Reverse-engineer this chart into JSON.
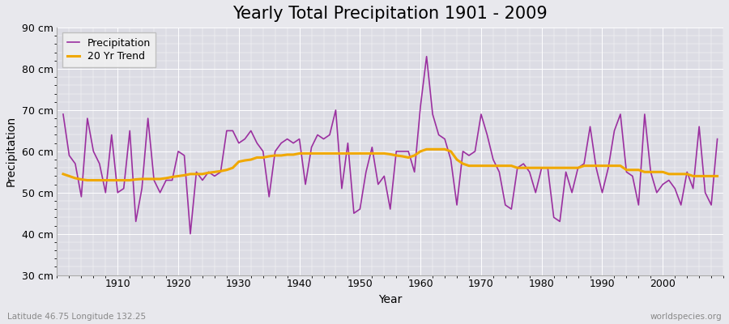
{
  "title": "Yearly Total Precipitation 1901 - 2009",
  "xlabel": "Year",
  "ylabel": "Precipitation",
  "subtitle_left": "Latitude 46.75 Longitude 132.25",
  "subtitle_right": "worldspecies.org",
  "years": [
    1901,
    1902,
    1903,
    1904,
    1905,
    1906,
    1907,
    1908,
    1909,
    1910,
    1911,
    1912,
    1913,
    1914,
    1915,
    1916,
    1917,
    1918,
    1919,
    1920,
    1921,
    1922,
    1923,
    1924,
    1925,
    1926,
    1927,
    1928,
    1929,
    1930,
    1931,
    1932,
    1933,
    1934,
    1935,
    1936,
    1937,
    1938,
    1939,
    1940,
    1941,
    1942,
    1943,
    1944,
    1945,
    1946,
    1947,
    1948,
    1949,
    1950,
    1951,
    1952,
    1953,
    1954,
    1955,
    1956,
    1957,
    1958,
    1959,
    1960,
    1961,
    1962,
    1963,
    1964,
    1965,
    1966,
    1967,
    1968,
    1969,
    1970,
    1971,
    1972,
    1973,
    1974,
    1975,
    1976,
    1977,
    1978,
    1979,
    1980,
    1981,
    1982,
    1983,
    1984,
    1985,
    1986,
    1987,
    1988,
    1989,
    1990,
    1991,
    1992,
    1993,
    1994,
    1995,
    1996,
    1997,
    1998,
    1999,
    2000,
    2001,
    2002,
    2003,
    2004,
    2005,
    2006,
    2007,
    2008,
    2009
  ],
  "precip": [
    69,
    59,
    57,
    49,
    68,
    60,
    57,
    50,
    64,
    50,
    51,
    65,
    43,
    51,
    68,
    53,
    50,
    53,
    53,
    60,
    59,
    40,
    55,
    53,
    55,
    54,
    55,
    65,
    65,
    62,
    63,
    65,
    62,
    60,
    49,
    60,
    62,
    63,
    62,
    63,
    52,
    61,
    64,
    63,
    64,
    70,
    51,
    62,
    45,
    46,
    55,
    61,
    52,
    54,
    46,
    60,
    60,
    60,
    55,
    71,
    83,
    69,
    64,
    63,
    58,
    47,
    60,
    59,
    60,
    69,
    64,
    58,
    55,
    47,
    46,
    56,
    57,
    55,
    50,
    56,
    56,
    44,
    43,
    55,
    50,
    56,
    57,
    66,
    56,
    50,
    56,
    65,
    69,
    55,
    54,
    47,
    69,
    55,
    50,
    52,
    53,
    51,
    47,
    55,
    51,
    66,
    50,
    47,
    63
  ],
  "trend": [
    54.5,
    54.0,
    53.5,
    53.2,
    53.0,
    53.0,
    53.0,
    53.0,
    53.0,
    53.0,
    53.0,
    53.0,
    53.2,
    53.3,
    53.3,
    53.3,
    53.3,
    53.5,
    53.8,
    54.0,
    54.2,
    54.5,
    54.5,
    54.5,
    54.8,
    55.0,
    55.2,
    55.5,
    56.0,
    57.5,
    57.8,
    58.0,
    58.5,
    58.5,
    58.8,
    59.0,
    59.0,
    59.2,
    59.2,
    59.5,
    59.5,
    59.5,
    59.5,
    59.5,
    59.5,
    59.5,
    59.5,
    59.5,
    59.5,
    59.5,
    59.5,
    59.5,
    59.5,
    59.5,
    59.3,
    59.0,
    58.8,
    58.5,
    59.0,
    60.0,
    60.5,
    60.5,
    60.5,
    60.5,
    60.0,
    58.0,
    57.0,
    56.5,
    56.5,
    56.5,
    56.5,
    56.5,
    56.5,
    56.5,
    56.5,
    56.0,
    56.0,
    56.0,
    56.0,
    56.0,
    56.0,
    56.0,
    56.0,
    56.0,
    56.0,
    56.0,
    56.5,
    56.5,
    56.5,
    56.5,
    56.5,
    56.5,
    56.5,
    55.5,
    55.5,
    55.5,
    55.0,
    55.0,
    55.0,
    55.0,
    54.5,
    54.5,
    54.5,
    54.5,
    54.0,
    54.0,
    54.0,
    54.0,
    54.0
  ],
  "precip_color": "#9b30a0",
  "trend_color": "#f0a800",
  "bg_color": "#e8e8ed",
  "plot_bg_color": "#dcdce4",
  "grid_color": "#ffffff",
  "ylim": [
    30,
    90
  ],
  "yticks": [
    30,
    40,
    50,
    60,
    70,
    80,
    90
  ],
  "xlim_min": 1900,
  "xlim_max": 2010,
  "title_fontsize": 15,
  "label_fontsize": 10,
  "tick_fontsize": 9,
  "figwidth": 9.0,
  "figheight": 4.0,
  "dpi": 100
}
